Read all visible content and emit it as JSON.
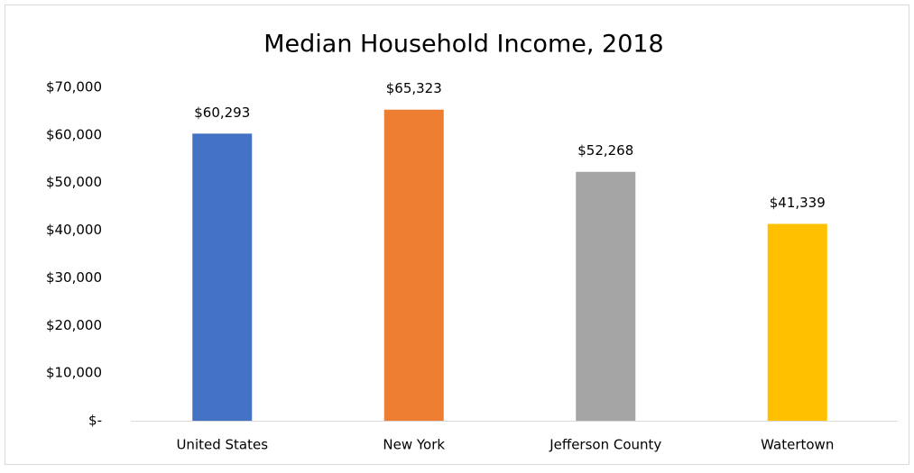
{
  "chart_data": {
    "type": "bar",
    "title": "Median Household Income, 2018",
    "categories": [
      "United States",
      "New York",
      "Jefferson County",
      "Watertown"
    ],
    "values": [
      60293,
      65323,
      52268,
      41339
    ],
    "value_labels": [
      "$60,293",
      "$65,323",
      "$52,268",
      "$41,339"
    ],
    "colors": [
      "#4472c4",
      "#ed7d31",
      "#a5a5a5",
      "#ffc000"
    ],
    "ylim": [
      0,
      70000
    ],
    "yticks": [
      {
        "value": 0,
        "label": "$-"
      },
      {
        "value": 10000,
        "label": "$10,000"
      },
      {
        "value": 20000,
        "label": "$20,000"
      },
      {
        "value": 30000,
        "label": "$30,000"
      },
      {
        "value": 40000,
        "label": "$40,000"
      },
      {
        "value": 50000,
        "label": "$50,000"
      },
      {
        "value": 60000,
        "label": "$60,000"
      },
      {
        "value": 70000,
        "label": "$70,000"
      }
    ],
    "grid": false
  }
}
